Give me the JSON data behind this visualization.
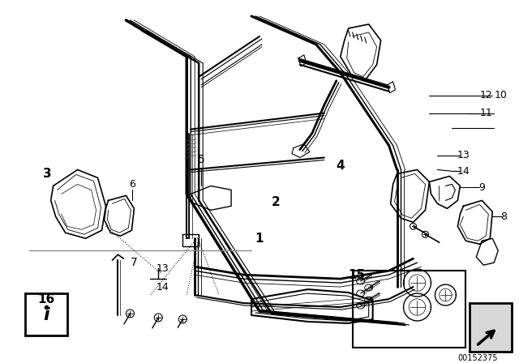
{
  "bg_color": "#ffffff",
  "fig_width": 6.4,
  "fig_height": 4.48,
  "dpi": 100,
  "watermark": "00152375",
  "line_color": "#000000",
  "text_color": "#000000"
}
